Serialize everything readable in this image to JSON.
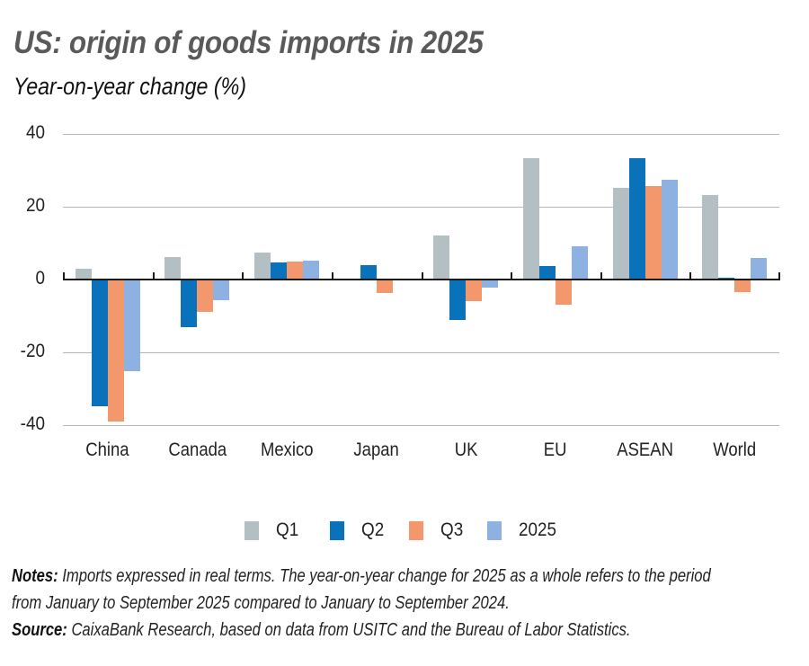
{
  "header": {
    "title": "US: origin of goods imports in 2025",
    "subtitle": "Year-on-year change (%)"
  },
  "chart_data": {
    "type": "bar",
    "title": "US: origin of goods imports in 2025",
    "subtitle": "Year-on-year change (%)",
    "xlabel": "",
    "ylabel": "Year-on-year change (%)",
    "ylim": [
      -40,
      40
    ],
    "yticks": [
      40,
      20,
      0,
      -20,
      -40
    ],
    "grid": true,
    "legend_position": "bottom",
    "categories": [
      "China",
      "Canada",
      "Mexico",
      "Japan",
      "UK",
      "EU",
      "ASEAN",
      "World"
    ],
    "series": [
      {
        "name": "Q1",
        "color": "#b3bfc3",
        "values": [
          3.0,
          6.1,
          7.5,
          0.2,
          12.2,
          33.4,
          25.3,
          23.3
        ]
      },
      {
        "name": "Q2",
        "color": "#0a72ba",
        "values": [
          -34.8,
          -13.2,
          4.6,
          3.9,
          -11.2,
          3.6,
          33.4,
          0.5
        ]
      },
      {
        "name": "Q3",
        "color": "#f3976c",
        "values": [
          -39.0,
          -8.8,
          5.0,
          -3.6,
          -5.9,
          -6.8,
          25.7,
          -3.4
        ]
      },
      {
        "name": "2025",
        "color": "#8db1e1",
        "values": [
          -25.1,
          -5.8,
          5.1,
          0.0,
          -2.2,
          9.1,
          27.3,
          6.0
        ]
      }
    ]
  },
  "axis": {
    "yticks": [
      "40",
      "20",
      "0",
      "-20",
      "-40"
    ]
  },
  "legend": {
    "items": [
      {
        "label": "Q1",
        "color": "#b3bfc3"
      },
      {
        "label": "Q2",
        "color": "#0a72ba"
      },
      {
        "label": "Q3",
        "color": "#f3976c"
      },
      {
        "label": "2025",
        "color": "#8db1e1"
      }
    ]
  },
  "footer": {
    "notes_label": "Notes:",
    "notes_text": " Imports expressed in real terms. The year-on-year change for 2025 as a whole refers to the period from January to September 2025 compared to January to September 2024.",
    "source_label": "Source:",
    "source_text": " CaixaBank Research, based on data from USITC and the Bureau of Labor Statistics."
  }
}
